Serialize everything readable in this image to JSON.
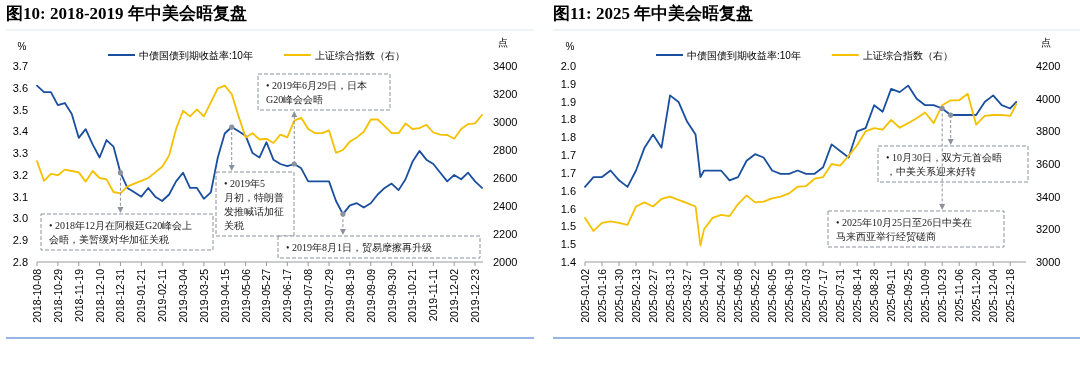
{
  "chart_data": [
    {
      "type": "line",
      "title": "图10: 2018-2019 年中美会晤复盘",
      "ylabel": "%",
      "y2label": "点",
      "legend": "top",
      "x": [
        "2018-10-08",
        "2018-10-15",
        "2018-10-22",
        "2018-10-29",
        "2018-11-05",
        "2018-11-12",
        "2018-11-19",
        "2018-11-26",
        "2018-12-03",
        "2018-12-10",
        "2018-12-17",
        "2018-12-24",
        "2018-12-31",
        "2019-01-07",
        "2019-01-14",
        "2019-01-21",
        "2019-01-28",
        "2019-02-04",
        "2019-02-11",
        "2019-02-18",
        "2019-02-25",
        "2019-03-04",
        "2019-03-11",
        "2019-03-18",
        "2019-03-25",
        "2019-04-01",
        "2019-04-08",
        "2019-04-15",
        "2019-04-22",
        "2019-04-29",
        "2019-05-06",
        "2019-05-13",
        "2019-05-20",
        "2019-05-27",
        "2019-06-03",
        "2019-06-10",
        "2019-06-17",
        "2019-06-24",
        "2019-07-01",
        "2019-07-08",
        "2019-07-15",
        "2019-07-22",
        "2019-07-29",
        "2019-08-05",
        "2019-08-12",
        "2019-08-19",
        "2019-08-26",
        "2019-09-02",
        "2019-09-09",
        "2019-09-16",
        "2019-09-23",
        "2019-09-30",
        "2019-10-07",
        "2019-10-14",
        "2019-10-21",
        "2019-10-28",
        "2019-11-04",
        "2019-11-11",
        "2019-11-18",
        "2019-11-25",
        "2019-12-02",
        "2019-12-09",
        "2019-12-16",
        "2019-12-23",
        "2019-12-30"
      ],
      "series": [
        {
          "name": "中债国债到期收益率:10年",
          "color": "#1a4e9e",
          "values": [
            3.61,
            3.58,
            3.58,
            3.52,
            3.53,
            3.48,
            3.37,
            3.41,
            3.34,
            3.28,
            3.36,
            3.33,
            3.21,
            3.14,
            3.12,
            3.1,
            3.14,
            3.1,
            3.08,
            3.11,
            3.17,
            3.21,
            3.14,
            3.14,
            3.09,
            3.12,
            3.28,
            3.39,
            3.42,
            3.4,
            3.38,
            3.3,
            3.28,
            3.35,
            3.27,
            3.25,
            3.24,
            3.25,
            3.23,
            3.17,
            3.17,
            3.17,
            3.17,
            3.08,
            3.02,
            3.06,
            3.07,
            3.05,
            3.07,
            3.11,
            3.14,
            3.16,
            3.13,
            3.18,
            3.26,
            3.31,
            3.27,
            3.25,
            3.21,
            3.17,
            3.2,
            3.18,
            3.21,
            3.17,
            3.14
          ]
        },
        {
          "name": "上证综合指数（右）",
          "color": "#f5c000",
          "axis": "y2",
          "values": [
            2720,
            2580,
            2630,
            2620,
            2660,
            2650,
            2640,
            2574,
            2650,
            2600,
            2590,
            2500,
            2490,
            2540,
            2560,
            2580,
            2600,
            2640,
            2680,
            2760,
            2950,
            3080,
            3040,
            3090,
            3040,
            3140,
            3240,
            3260,
            3200,
            3040,
            2890,
            2920,
            2875,
            2880,
            2850,
            2910,
            2890,
            3010,
            3030,
            2950,
            2920,
            2920,
            2940,
            2780,
            2800,
            2860,
            2890,
            2930,
            3018,
            3018,
            2970,
            2920,
            2920,
            2990,
            2950,
            2956,
            2980,
            2925,
            2910,
            2907,
            2880,
            2950,
            2985,
            2990,
            3050
          ]
        }
      ],
      "xlim": [
        "2018-10-08",
        "2019-12-31"
      ],
      "xticks": [
        "2018-10-08",
        "2018-10-29",
        "2018-11-19",
        "2018-12-10",
        "2018-12-31",
        "2019-01-21",
        "2019-02-11",
        "2019-03-04",
        "2019-03-25",
        "2019-04-15",
        "2019-05-06",
        "2019-05-27",
        "2019-06-17",
        "2019-07-08",
        "2019-07-29",
        "2019-08-19",
        "2019-09-09",
        "2019-09-30",
        "2019-10-21",
        "2019-11-11",
        "2019-12-02",
        "2019-12-23"
      ],
      "ylim": [
        2.8,
        3.7
      ],
      "yticks": [
        2.8,
        2.9,
        {
          "value": 3,
          "label": "3.0"
        },
        3.1,
        3.2,
        3.3,
        3.4,
        3.5,
        3.6,
        3.7
      ],
      "y2lim": [
        2000,
        3400
      ],
      "y2ticks": [
        2000,
        2200,
        2400,
        2600,
        2800,
        3000,
        3200,
        3400
      ],
      "annotations": [
        {
          "text": "• 2018年12月在阿根廷G20峰会上会晤，美暂缓对华加征关税",
          "x": "2018-12-31",
          "y": 3.21
        },
        {
          "text": "• 2019年5月初，特朗普发推喊话加征关税",
          "x": "2019-04-22",
          "y": 3.42
        },
        {
          "text": "• 2019年6月29日，日本G20峰会会晤",
          "x": "2019-06-24",
          "y": 3.25
        },
        {
          "text": "• 2019年8月1日，贸易摩擦再升级",
          "x": "2019-08-12",
          "y": 3.02
        }
      ]
    },
    {
      "type": "line",
      "title": "图11: 2025 年中美会晤复盘",
      "ylabel": "%",
      "y2label": "点",
      "legend": "top",
      "x": [
        "2025-01-02",
        "2025-01-09",
        "2025-01-16",
        "2025-01-23",
        "2025-01-30",
        "2025-02-06",
        "2025-02-13",
        "2025-02-20",
        "2025-02-27",
        "2025-03-06",
        "2025-03-13",
        "2025-03-20",
        "2025-03-27",
        "2025-04-03",
        "2025-04-07",
        "2025-04-10",
        "2025-04-17",
        "2025-04-24",
        "2025-05-01",
        "2025-05-08",
        "2025-05-15",
        "2025-05-22",
        "2025-05-29",
        "2025-06-05",
        "2025-06-12",
        "2025-06-19",
        "2025-06-26",
        "2025-07-03",
        "2025-07-10",
        "2025-07-17",
        "2025-07-24",
        "2025-07-31",
        "2025-08-07",
        "2025-08-14",
        "2025-08-21",
        "2025-08-28",
        "2025-09-04",
        "2025-09-11",
        "2025-09-18",
        "2025-09-25",
        "2025-10-02",
        "2025-10-09",
        "2025-10-16",
        "2025-10-23",
        "2025-10-30",
        "2025-11-06",
        "2025-11-13",
        "2025-11-20",
        "2025-11-27",
        "2025-12-04",
        "2025-12-11",
        "2025-12-18",
        "2025-12-23"
      ],
      "series": [
        {
          "name": "中债国债到期收益率:10年",
          "color": "#1a4e9e",
          "values": [
            1.63,
            1.66,
            1.66,
            1.68,
            1.65,
            1.63,
            1.68,
            1.75,
            1.79,
            1.75,
            1.91,
            1.89,
            1.83,
            1.79,
            1.66,
            1.68,
            1.68,
            1.68,
            1.65,
            1.66,
            1.71,
            1.73,
            1.72,
            1.68,
            1.67,
            1.67,
            1.68,
            1.67,
            1.67,
            1.69,
            1.76,
            1.74,
            1.72,
            1.8,
            1.81,
            1.88,
            1.86,
            1.93,
            1.92,
            1.94,
            1.9,
            1.88,
            1.88,
            1.87,
            1.85,
            1.85,
            1.85,
            1.85,
            1.89,
            1.91,
            1.88,
            1.87,
            1.89
          ]
        },
        {
          "name": "上证综合指数（右）",
          "color": "#f5c000",
          "axis": "y2",
          "values": [
            3270,
            3190,
            3239,
            3249,
            3240,
            3228,
            3340,
            3365,
            3340,
            3386,
            3400,
            3380,
            3360,
            3340,
            3101,
            3200,
            3270,
            3288,
            3281,
            3355,
            3408,
            3365,
            3370,
            3390,
            3400,
            3420,
            3461,
            3465,
            3510,
            3520,
            3600,
            3590,
            3650,
            3715,
            3800,
            3820,
            3810,
            3870,
            3822,
            3850,
            3880,
            3915,
            3850,
            3960,
            3990,
            3990,
            4030,
            3841,
            3895,
            3900,
            3900,
            3894,
            3967
          ]
        }
      ],
      "xlim": [
        "2025-01-02",
        "2025-12-31"
      ],
      "xticks": [
        "2025-01-02",
        "2025-01-16",
        "2025-01-30",
        "2025-02-13",
        "2025-02-27",
        "2025-03-13",
        "2025-03-27",
        "2025-04-10",
        "2025-04-24",
        "2025-05-08",
        "2025-05-22",
        "2025-06-05",
        "2025-06-19",
        "2025-07-03",
        "2025-07-17",
        "2025-07-31",
        "2025-08-14",
        "2025-08-28",
        "2025-09-11",
        "2025-09-25",
        "2025-10-09",
        "2025-10-23",
        "2025-11-06",
        "2025-11-20",
        "2025-12-04",
        "2025-12-18"
      ],
      "ylim": [
        1.4,
        2.0
      ],
      "yticks": [
        {
          "value": 1.4,
          "label": "1.4"
        },
        {
          "value": 1.4545,
          "label": "1.5"
        },
        {
          "value": 1.5091,
          "label": "1.5"
        },
        {
          "value": 1.5636,
          "label": "1.6"
        },
        {
          "value": 1.6182,
          "label": "1.6"
        },
        {
          "value": 1.6727,
          "label": "1.7"
        },
        {
          "value": 1.7273,
          "label": "1.7"
        },
        {
          "value": 1.7818,
          "label": "1.8"
        },
        {
          "value": 1.8364,
          "label": "1.8"
        },
        {
          "value": 1.8909,
          "label": "1.9"
        },
        {
          "value": 1.9455,
          "label": "1.9"
        },
        {
          "value": 2,
          "label": "2.0"
        }
      ],
      "y2lim": [
        3000,
        4200
      ],
      "y2ticks": [
        3000,
        3200,
        3400,
        3600,
        3800,
        4000,
        4200
      ],
      "annotations": [
        {
          "text": "• 10月30日，双方元首会晤，中美关系迎来好转",
          "x": "2025-10-30",
          "y": 1.85
        },
        {
          "text": "• 2025年10月25日至26日中美在马来西亚举行经贸磋商",
          "x": "2025-10-23",
          "y": 1.87
        }
      ]
    }
  ]
}
